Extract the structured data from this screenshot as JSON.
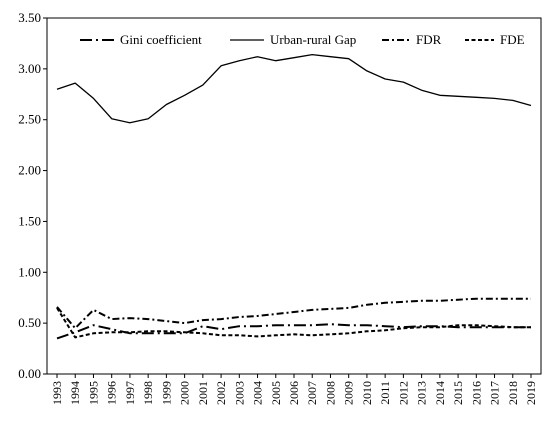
{
  "chart_data": {
    "type": "line",
    "title": "",
    "xlabel": "",
    "ylabel": "",
    "x": [
      "1993",
      "1994",
      "1995",
      "1996",
      "1997",
      "1998",
      "1999",
      "2000",
      "2001",
      "2002",
      "2003",
      "2004",
      "2005",
      "2006",
      "2007",
      "2008",
      "2009",
      "2010",
      "2011",
      "2012",
      "2013",
      "2014",
      "2015",
      "2016",
      "2017",
      "2018",
      "2019"
    ],
    "ylim": [
      0,
      3.5
    ],
    "yticks": [
      "0.00",
      "0.50",
      "1.00",
      "1.50",
      "2.00",
      "2.50",
      "3.00",
      "3.50"
    ],
    "grid": false,
    "legend_position": "top",
    "series": [
      {
        "name": "Gini coefficient",
        "dash": "long-dash-dot",
        "values": [
          0.35,
          0.41,
          0.48,
          0.44,
          0.4,
          0.4,
          0.4,
          0.4,
          0.47,
          0.44,
          0.47,
          0.47,
          0.48,
          0.48,
          0.48,
          0.49,
          0.48,
          0.48,
          0.47,
          0.46,
          0.47,
          0.47,
          0.46,
          0.46,
          0.46,
          0.46,
          0.46
        ]
      },
      {
        "name": "Urban-rural Gap",
        "dash": "solid",
        "values": [
          2.8,
          2.86,
          2.71,
          2.51,
          2.47,
          2.51,
          2.65,
          2.74,
          2.84,
          3.03,
          3.08,
          3.12,
          3.08,
          3.11,
          3.14,
          3.12,
          3.1,
          2.98,
          2.9,
          2.87,
          2.79,
          2.74,
          2.73,
          2.72,
          2.71,
          2.69,
          2.64
        ]
      },
      {
        "name": "FDR",
        "dash": "dash-dot",
        "values": [
          0.66,
          0.45,
          0.63,
          0.54,
          0.55,
          0.54,
          0.52,
          0.5,
          0.53,
          0.54,
          0.56,
          0.57,
          0.59,
          0.61,
          0.63,
          0.64,
          0.65,
          0.68,
          0.7,
          0.71,
          0.72,
          0.72,
          0.73,
          0.74,
          0.74,
          0.74,
          0.74
        ]
      },
      {
        "name": "FDE",
        "dash": "short-dash",
        "values": [
          0.65,
          0.36,
          0.4,
          0.41,
          0.41,
          0.42,
          0.42,
          0.41,
          0.4,
          0.38,
          0.38,
          0.37,
          0.38,
          0.39,
          0.38,
          0.39,
          0.4,
          0.42,
          0.43,
          0.45,
          0.46,
          0.46,
          0.48,
          0.48,
          0.47,
          0.46,
          0.46
        ]
      }
    ]
  }
}
